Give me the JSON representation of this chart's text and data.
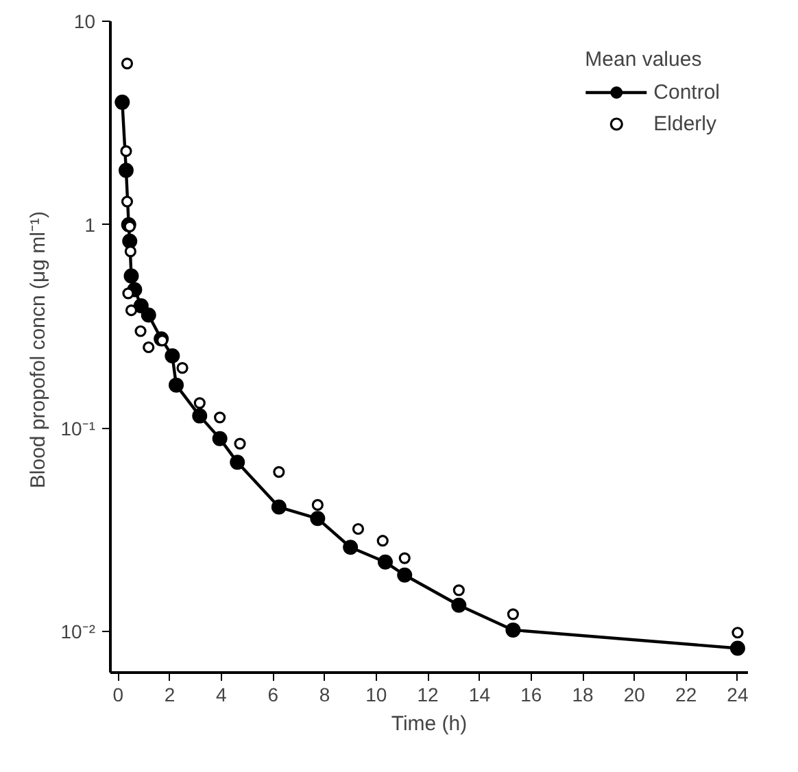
{
  "chart_data": {
    "type": "line",
    "xlabel": "Time (h)",
    "ylabel": "Blood propofol concn  (μg ml⁻¹)",
    "legend_title": "Mean values",
    "log": "y",
    "grid": false,
    "legend": "top right",
    "marker": "circle",
    "xlim": [
      -0.3,
      24.4
    ],
    "xticks": [
      0,
      2,
      4,
      6,
      8,
      10,
      12,
      14,
      16,
      18,
      20,
      22,
      24
    ],
    "ylim": [
      0.0063,
      10
    ],
    "yticks": [
      {
        "value": 10,
        "label": "10"
      },
      {
        "value": 1,
        "label": "1"
      },
      {
        "value": 0.1,
        "label": "10⁻¹"
      },
      {
        "value": 0.01,
        "label": "10⁻²"
      }
    ],
    "series": [
      {
        "name": "Control",
        "color": "#000000",
        "x": [
          0.16,
          0.31,
          0.41,
          0.45,
          0.51,
          0.64,
          0.89,
          1.18,
          1.67,
          2.1,
          2.25,
          3.16,
          3.94,
          4.62,
          6.23,
          7.73,
          9.0,
          10.35,
          11.1,
          13.2,
          15.3,
          24
        ],
        "values": [
          4.0,
          1.85,
          1.0,
          0.83,
          0.56,
          0.48,
          0.4,
          0.36,
          0.275,
          0.227,
          0.163,
          0.115,
          0.089,
          0.068,
          0.041,
          0.036,
          0.026,
          0.022,
          0.019,
          0.0135,
          0.0102,
          0.0083
        ]
      },
      {
        "name": "Elderly",
        "type": "scatter",
        "color": "#000000",
        "x": [
          0.35,
          0.31,
          0.35,
          0.45,
          0.48,
          0.39,
          0.51,
          0.87,
          1.18,
          1.71,
          2.49,
          3.16,
          3.94,
          4.72,
          6.23,
          7.73,
          9.3,
          10.25,
          11.1,
          13.2,
          15.3,
          24
        ],
        "values": [
          6.2,
          2.3,
          1.3,
          0.98,
          0.74,
          0.46,
          0.38,
          0.3,
          0.25,
          0.27,
          0.198,
          0.133,
          0.113,
          0.084,
          0.061,
          0.042,
          0.032,
          0.028,
          0.023,
          0.016,
          0.0122,
          0.0099
        ]
      }
    ]
  }
}
